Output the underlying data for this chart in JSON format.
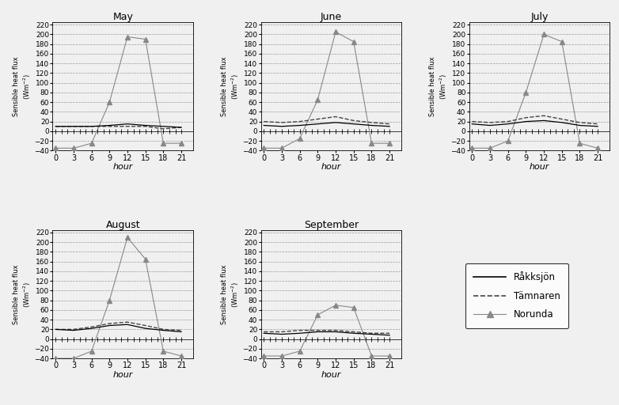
{
  "hours": [
    0,
    3,
    6,
    9,
    12,
    15,
    18,
    21
  ],
  "months": [
    "May",
    "June",
    "July",
    "August",
    "September"
  ],
  "ylabel": "Sensible heat flux (Wm-2)",
  "xlabel": "hour",
  "ylim": [
    -40,
    225
  ],
  "yticks": [
    -40,
    -20,
    0,
    20,
    40,
    60,
    80,
    100,
    120,
    140,
    160,
    180,
    200,
    220
  ],
  "xticks": [
    0,
    3,
    6,
    9,
    12,
    15,
    18,
    21
  ],
  "norunda": {
    "May": [
      -35,
      -35,
      -25,
      60,
      195,
      190,
      -25,
      -25
    ],
    "June": [
      -35,
      -35,
      -15,
      65,
      205,
      185,
      -25,
      -25
    ],
    "July": [
      -35,
      -35,
      -20,
      80,
      200,
      185,
      -25,
      -35
    ],
    "August": [
      -40,
      -40,
      -25,
      80,
      210,
      165,
      -25,
      -35
    ],
    "September": [
      -35,
      -35,
      -25,
      50,
      70,
      65,
      -35,
      -35
    ]
  },
  "tamnaren": {
    "May": [
      10,
      10,
      10,
      10,
      10,
      10,
      5,
      8
    ],
    "June": [
      20,
      18,
      20,
      25,
      30,
      22,
      18,
      15
    ],
    "July": [
      20,
      18,
      20,
      28,
      32,
      25,
      18,
      15
    ],
    "August": [
      20,
      20,
      25,
      32,
      35,
      28,
      20,
      18
    ],
    "September": [
      15,
      15,
      18,
      18,
      18,
      15,
      12,
      12
    ]
  },
  "raksjoe": {
    "May": [
      10,
      10,
      10,
      12,
      15,
      12,
      10,
      8
    ],
    "June": [
      12,
      10,
      12,
      15,
      18,
      15,
      12,
      10
    ],
    "July": [
      15,
      12,
      15,
      20,
      22,
      18,
      12,
      10
    ],
    "August": [
      20,
      18,
      22,
      28,
      30,
      22,
      18,
      15
    ],
    "September": [
      12,
      10,
      12,
      15,
      15,
      12,
      10,
      8
    ]
  },
  "norunda_color": "#888888",
  "tamnaren_color": "#444444",
  "raksjoe_color": "#000000",
  "legend_raksjoe": "Råkksjön",
  "legend_tamnaren": "Tämnaren",
  "legend_norunda": "Norunda",
  "background_color": "#f0f0f0"
}
